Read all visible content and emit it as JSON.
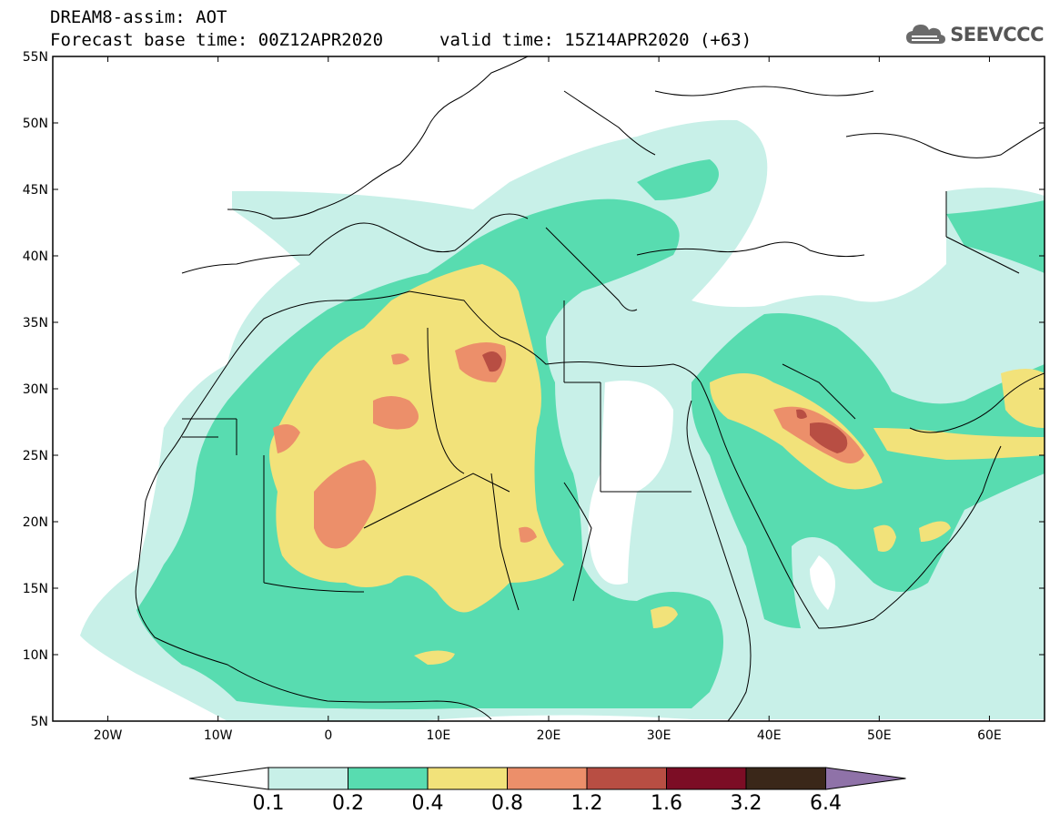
{
  "header": {
    "line1": "DREAM8-assim: AOT",
    "base_time": "Forecast base time: 00Z12APR2020",
    "valid_time": "valid time: 15Z14APR2020 (+63)"
  },
  "logo": {
    "text": "SEEVCCC",
    "icon": "cloud-icon"
  },
  "map": {
    "projection": "lat-lon",
    "lon_range": [
      -25,
      65
    ],
    "lat_range": [
      5,
      55
    ],
    "lat_ticks": [
      "55N",
      "50N",
      "45N",
      "40N",
      "35N",
      "30N",
      "25N",
      "20N",
      "15N",
      "10N",
      "5N"
    ],
    "lon_ticks": [
      "20W",
      "10W",
      "0",
      "10E",
      "20E",
      "30E",
      "40E",
      "50E",
      "60E"
    ]
  },
  "colorbar": {
    "levels": [
      "0.1",
      "0.2",
      "0.4",
      "0.8",
      "1.2",
      "1.6",
      "3.2",
      "6.4"
    ],
    "colors": [
      "#c8f0e8",
      "#58dcb0",
      "#f2e27a",
      "#ec8f6a",
      "#b84e43",
      "#7c0d25",
      "#3a2719",
      "#8f72a8"
    ],
    "under_color": "#ffffff",
    "over_color": "#8f72a8"
  }
}
